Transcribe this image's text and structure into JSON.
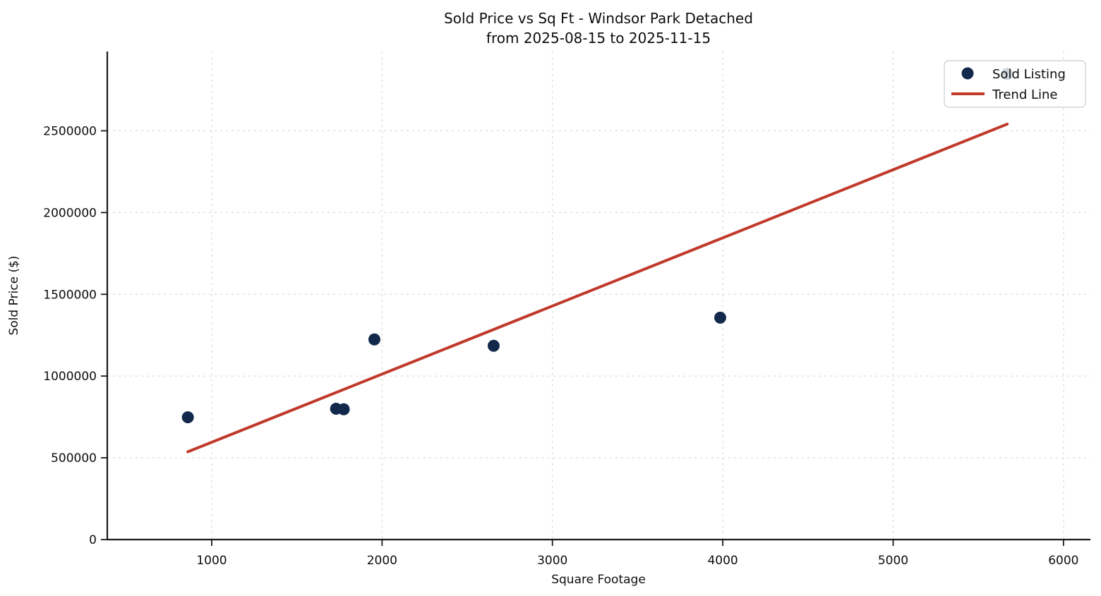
{
  "chart_data": {
    "type": "scatter",
    "title": "Sold Price vs Sq Ft - Windsor Park Detached",
    "subtitle": "from 2025-08-15 to 2025-11-15",
    "xlabel": "Square Footage",
    "ylabel": "Sold Price ($)",
    "x_ticks": [
      1000,
      2000,
      3000,
      4000,
      5000,
      6000
    ],
    "y_ticks": [
      0,
      500000,
      1000000,
      1500000,
      2000000,
      2500000
    ],
    "xlim": [
      387,
      6158
    ],
    "ylim": [
      0,
      2985000
    ],
    "grid": true,
    "legend": {
      "position": "upper-right",
      "entries": [
        {
          "label": "Sold Listing",
          "type": "marker"
        },
        {
          "label": "Trend Line",
          "type": "line"
        }
      ]
    },
    "series": [
      {
        "name": "Sold Listing",
        "type": "scatter",
        "color": "#13294b",
        "points": [
          [
            860,
            748000
          ],
          [
            1730,
            800000
          ],
          [
            1775,
            797000
          ],
          [
            1955,
            1224000
          ],
          [
            2655,
            1185000
          ],
          [
            3985,
            1357000
          ],
          [
            5670,
            2848000
          ]
        ]
      },
      {
        "name": "Trend Line",
        "type": "line",
        "color": "#c0392b",
        "points": [
          [
            860,
            537000
          ],
          [
            5670,
            2541000
          ]
        ]
      }
    ]
  },
  "colors": {
    "marker": "#13294b",
    "trend_line": "#c0392b",
    "gridline": "#d9d9d9",
    "axis": "#1a1a1a",
    "background": "#ffffff",
    "legend_border": "#cccccc"
  }
}
